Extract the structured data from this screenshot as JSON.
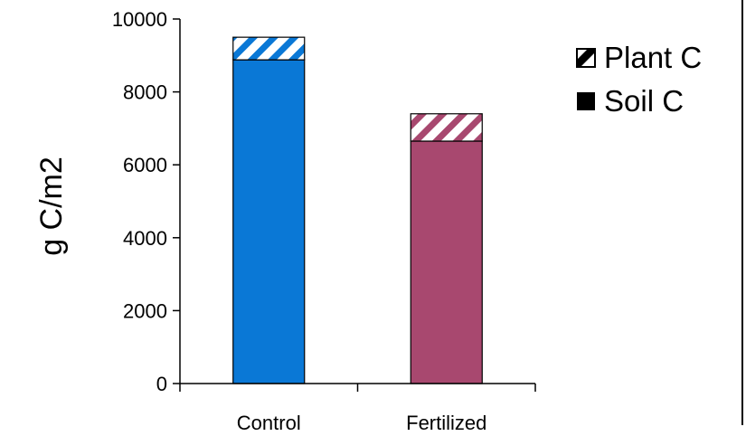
{
  "chart_data": {
    "type": "bar",
    "stacked": true,
    "categories": [
      "Control",
      "Fertilized"
    ],
    "series": [
      {
        "name": "Soil C",
        "values": [
          8880,
          6650
        ],
        "pattern": "solid"
      },
      {
        "name": "Plant C",
        "values": [
          620,
          750
        ],
        "pattern": "diagonal-hatch"
      }
    ],
    "bar_colors": [
      "#0a78d6",
      "#a8486f"
    ],
    "ylabel": "g C/m2",
    "ylim": [
      0,
      10000
    ],
    "yticks": [
      0,
      2000,
      4000,
      6000,
      8000,
      10000
    ],
    "ytick_labels": [
      "0",
      "2000",
      "4000",
      "6000",
      "8000",
      "10000"
    ],
    "grid": false,
    "legend_position": "right",
    "legend": [
      {
        "label": "Plant C",
        "swatch": "hatched"
      },
      {
        "label": "Soil C",
        "swatch": "solid"
      }
    ]
  }
}
